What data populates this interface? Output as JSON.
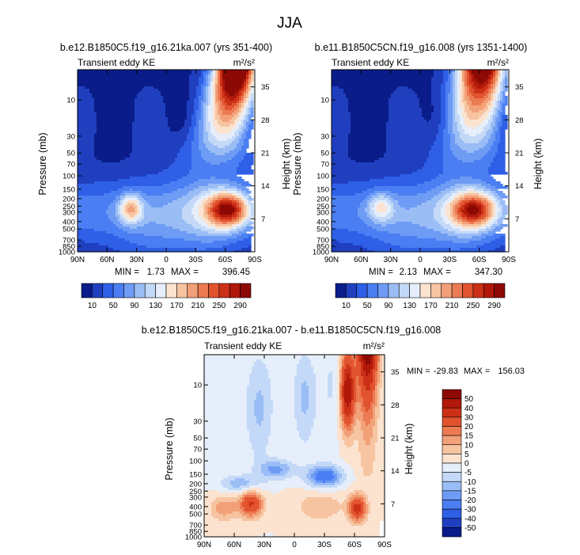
{
  "figure_title": "JJA",
  "chart_data": [
    {
      "type": "heatmap",
      "id": "top-left",
      "title": "b.e12.B1850C5.f19_g16.21ka.007 (yrs 351-400)",
      "variable": "Transient eddy KE",
      "units": "m²/s²",
      "ylabel": "Pressure (mb)",
      "ylabel_right": "Height (km)",
      "xlabel": "",
      "x_ticks": [
        "90N",
        "60N",
        "30N",
        "0",
        "30S",
        "60S",
        "90S"
      ],
      "y_ticks": [
        "10",
        "30",
        "50",
        "70",
        "100",
        "150",
        "200",
        "250",
        "300",
        "400",
        "500",
        "700",
        "850",
        "1000"
      ],
      "y_ticks_right": [
        "35",
        "28",
        "21",
        "14",
        "7"
      ],
      "min_label": "MIN =",
      "min": "1.73",
      "max_label": "MAX =",
      "max": "396.45",
      "colorbar_levels": [
        "10",
        "50",
        "90",
        "130",
        "170",
        "210",
        "250",
        "290"
      ],
      "colors": [
        "#0a1c8a",
        "#1f3fbf",
        "#2f5fe6",
        "#4a7ef2",
        "#6e9cf5",
        "#9bbdf6",
        "#c4d9f8",
        "#e5eefa",
        "#fbe3d0",
        "#f7c4a1",
        "#f2a078",
        "#ec7a52",
        "#e1532e",
        "#cc3118",
        "#b0180a",
        "#8c0905"
      ],
      "structure": {
        "blobs": [
          {
            "lat": 36,
            "p": 270,
            "amp": 0.4,
            "slat": 8,
            "slogp": 0.13
          },
          {
            "lat": -63,
            "p": 280,
            "amp": 0.7,
            "slat": 14,
            "slogp": 0.15
          },
          {
            "lat": -45,
            "p": 300,
            "amp": 0.22,
            "slat": 22,
            "slogp": 0.32
          },
          {
            "lat": 10,
            "p": 500,
            "amp": 0.1,
            "slat": 30,
            "slogp": 0.4
          }
        ],
        "jet": {
          "lat_at_top": -70,
          "lat_at_100": -52,
          "amp_top": 1.25,
          "width": 14
        }
      }
    },
    {
      "type": "heatmap",
      "id": "top-right",
      "title": "b.e11.B1850C5CN.f19_g16.008 (yrs 1351-1400)",
      "variable": "Transient eddy KE",
      "units": "m²/s²",
      "ylabel": "Pressure (mb)",
      "ylabel_right": "Height (km)",
      "xlabel": "",
      "x_ticks": [
        "90N",
        "60N",
        "30N",
        "0",
        "30S",
        "60S",
        "90S"
      ],
      "y_ticks": [
        "10",
        "30",
        "50",
        "70",
        "100",
        "150",
        "200",
        "250",
        "300",
        "400",
        "500",
        "700",
        "850",
        "1000"
      ],
      "y_ticks_right": [
        "35",
        "28",
        "21",
        "14",
        "7"
      ],
      "min_label": "MIN =",
      "min": "2.13",
      "max_label": "MAX =",
      "max": "347.30",
      "colorbar_levels": [
        "10",
        "50",
        "90",
        "130",
        "170",
        "210",
        "250",
        "290"
      ],
      "colors": [
        "#0a1c8a",
        "#1f3fbf",
        "#2f5fe6",
        "#4a7ef2",
        "#6e9cf5",
        "#9bbdf6",
        "#c4d9f8",
        "#e5eefa",
        "#fbe3d0",
        "#f7c4a1",
        "#f2a078",
        "#ec7a52",
        "#e1532e",
        "#cc3118",
        "#b0180a",
        "#8c0905"
      ],
      "structure": {
        "blobs": [
          {
            "lat": 40,
            "p": 260,
            "amp": 0.28,
            "slat": 9,
            "slogp": 0.13
          },
          {
            "lat": -55,
            "p": 280,
            "amp": 0.62,
            "slat": 15,
            "slogp": 0.15
          },
          {
            "lat": -45,
            "p": 300,
            "amp": 0.22,
            "slat": 22,
            "slogp": 0.32
          },
          {
            "lat": 10,
            "p": 500,
            "amp": 0.1,
            "slat": 30,
            "slogp": 0.4
          }
        ],
        "jet": {
          "lat_at_top": -60,
          "lat_at_100": -48,
          "amp_top": 1.05,
          "width": 15
        }
      }
    },
    {
      "type": "heatmap",
      "id": "bottom-diff",
      "title": "b.e12.B1850C5.f19_g16.21ka.007 - b.e11.B1850C5CN.f19_g16.008",
      "variable": "Transient eddy KE",
      "units": "m²/s²",
      "ylabel": "Pressure (mb)",
      "ylabel_right": "Height (km)",
      "xlabel": "",
      "x_ticks": [
        "90N",
        "60N",
        "30N",
        "0",
        "30S",
        "60S",
        "90S"
      ],
      "y_ticks": [
        "10",
        "30",
        "50",
        "70",
        "100",
        "150",
        "200",
        "250",
        "300",
        "400",
        "500",
        "700",
        "850",
        "1000"
      ],
      "y_ticks_right": [
        "35",
        "28",
        "21",
        "14",
        "7"
      ],
      "min_label": "MIN =",
      "min": "-29.83",
      "max_label": "MAX =",
      "max": "156.03",
      "colorbar_levels": [
        "50",
        "40",
        "30",
        "20",
        "15",
        "10",
        "5",
        "0",
        "-5",
        "-10",
        "-15",
        "-20",
        "-30",
        "-40",
        "-50"
      ],
      "colors": [
        "#8c0905",
        "#b0180a",
        "#cc3118",
        "#e1532e",
        "#ec7a52",
        "#f2a078",
        "#f7c4a1",
        "#fbe3d0",
        "#e5eefa",
        "#c4d9f8",
        "#9bbdf6",
        "#6e9cf5",
        "#4a7ef2",
        "#2f5fe6",
        "#1f3fbf",
        "#0a1c8a"
      ]
    }
  ]
}
